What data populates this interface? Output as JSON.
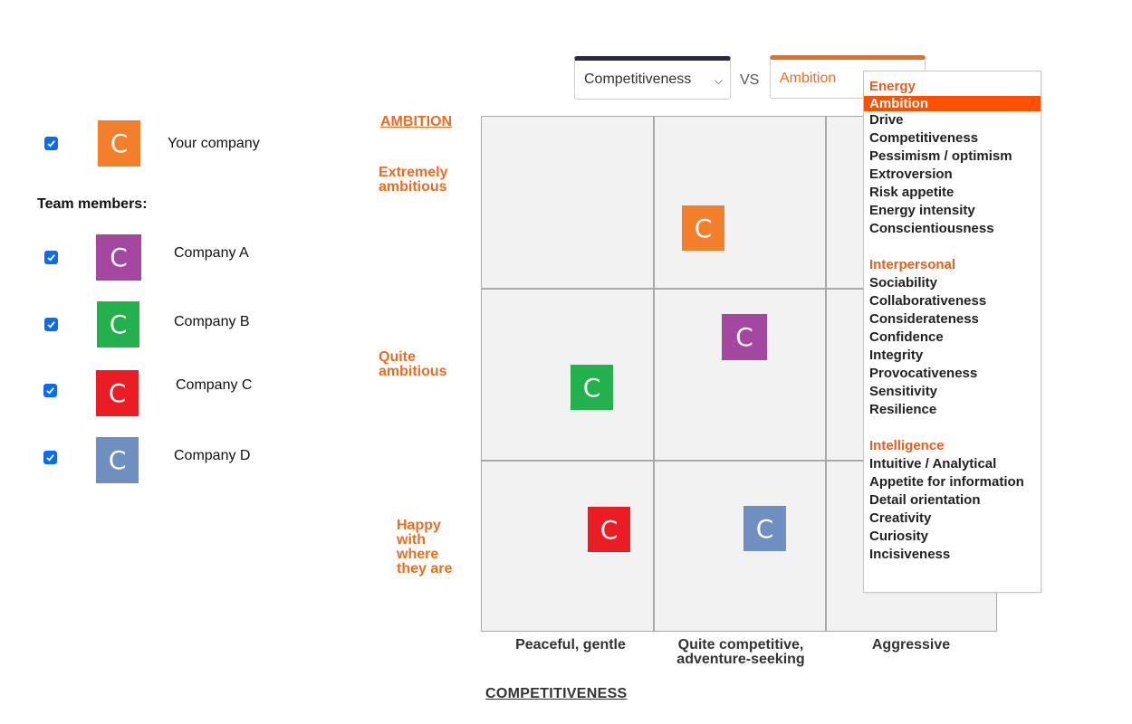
{
  "legend": {
    "your_company": {
      "label": "Your company",
      "letter": "C",
      "color": "#f47f2a",
      "checked": true
    },
    "team_title": "Team members:",
    "members": [
      {
        "label": "Company A",
        "letter": "C",
        "color": "#a347a1",
        "checked": true
      },
      {
        "label": "Company B",
        "letter": "C",
        "color": "#22b14c",
        "checked": true
      },
      {
        "label": "Company C",
        "letter": "C",
        "color": "#ec1c24",
        "checked": true
      },
      {
        "label": "Company D",
        "letter": "C",
        "color": "#6e8fc0",
        "checked": true
      }
    ]
  },
  "selectors": {
    "x_axis_value": "Competitiveness",
    "vs": "VS",
    "y_axis_value": "Ambition"
  },
  "axes": {
    "y_title": "AMBITION",
    "y_levels": [
      "Extremely ambitious",
      "Quite ambitious",
      "Happy with where they are"
    ],
    "x_title": "COMPETITIVENESS",
    "x_levels": [
      "Peaceful, gentle",
      "Quite competitive, adventure-seeking",
      "Aggressive"
    ]
  },
  "dropdown": {
    "groups": [
      {
        "name": "Energy",
        "items": [
          "Ambition",
          "Drive",
          "Competitiveness",
          "Pessimism / optimism",
          "Extroversion",
          "Risk appetite",
          "Energy intensity",
          "Conscientiousness"
        ]
      },
      {
        "name": "Interpersonal",
        "items": [
          "Sociability",
          "Collaborativeness",
          "Considerateness",
          "Confidence",
          "Integrity",
          "Provocativeness",
          "Sensitivity",
          "Resilience"
        ]
      },
      {
        "name": "Intelligence",
        "items": [
          "Intuitive / Analytical",
          "Appetite for information",
          "Detail orientation",
          "Creativity",
          "Curiosity",
          "Incisiveness"
        ]
      }
    ],
    "selected": "Ambition"
  },
  "colors": {
    "accent": "#f26b1d",
    "dropdown_highlight": "#ff4f00",
    "grid_bg": "#f2f2f2",
    "grid_line": "#a9a9a9"
  }
}
